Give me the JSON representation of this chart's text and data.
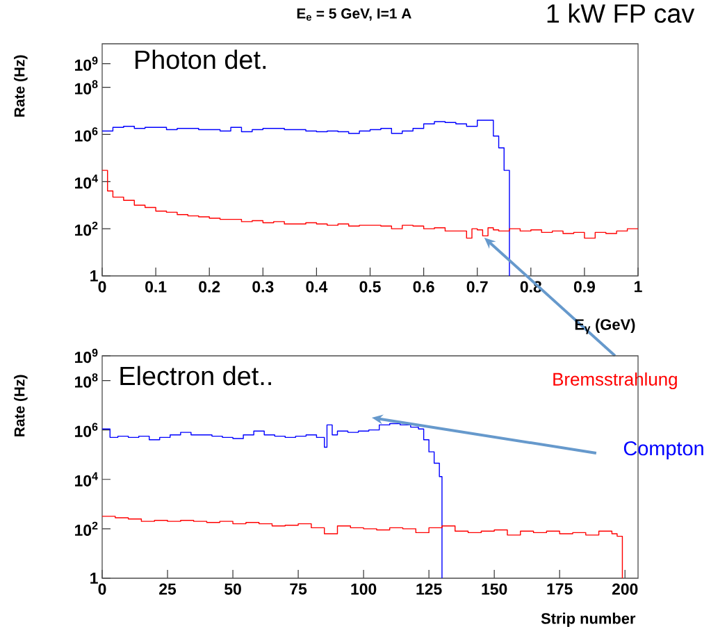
{
  "chart_data": [
    {
      "type": "step",
      "title": "**E$_{e}$ = 5 GeV, I=1 A**",
      "xlabel": "**E$_{γ}$ (GeV)**",
      "ylabel": "**Rate (Hz)**",
      "log": "y",
      "xlim": [
        0,
        1
      ],
      "ylim": [
        1,
        7000000000
      ],
      "xticks": [
        0,
        0.1,
        0.2,
        0.3,
        0.4,
        0.5,
        0.6,
        0.7,
        0.8,
        0.9,
        1
      ],
      "yticks": [
        1,
        {
          "value": 100,
          "label": "10$^{2}$"
        },
        {
          "value": 10000,
          "label": "10$^{4}$"
        },
        {
          "value": 1000000,
          "label": "10$^{6}$"
        },
        {
          "value": 100000000,
          "label": "10$^{8}$"
        },
        {
          "value": 1000000000,
          "label": "10$^{9}$"
        }
      ],
      "annotations": [
        "Photon det.",
        "1 kW FP cav"
      ],
      "series": [
        {
          "color": "#0000ff",
          "x": [
            0,
            0.02,
            0.04,
            0.06,
            0.08,
            0.1,
            0.12,
            0.14,
            0.16,
            0.18,
            0.2,
            0.22,
            0.24,
            0.26,
            0.28,
            0.3,
            0.32,
            0.34,
            0.36,
            0.38,
            0.4,
            0.42,
            0.44,
            0.46,
            0.48,
            0.5,
            0.52,
            0.54,
            0.56,
            0.58,
            0.6,
            0.62,
            0.64,
            0.66,
            0.68,
            0.7,
            0.73,
            0.74,
            0.75,
            0.76
          ],
          "values": [
            1400000,
            2000000,
            2200000,
            1800000,
            2000000,
            2000000,
            1600000,
            1800000,
            1800000,
            1600000,
            1600000,
            1400000,
            2000000,
            1300000,
            1600000,
            1800000,
            1800000,
            1600000,
            1600000,
            1400000,
            1300000,
            1400000,
            1300000,
            1100000,
            1400000,
            1600000,
            1800000,
            1100000,
            1400000,
            1800000,
            2800000,
            3500000,
            3200000,
            2800000,
            2200000,
            4000000,
            850000,
            270000,
            30000,
            1
          ]
        },
        {
          "name": "Bremsstrahlung",
          "color": "#ff0000",
          "x": [
            0,
            0.01,
            0.02,
            0.04,
            0.06,
            0.08,
            0.1,
            0.12,
            0.14,
            0.16,
            0.18,
            0.2,
            0.22,
            0.24,
            0.26,
            0.28,
            0.3,
            0.32,
            0.34,
            0.36,
            0.38,
            0.4,
            0.42,
            0.44,
            0.46,
            0.48,
            0.5,
            0.52,
            0.54,
            0.56,
            0.58,
            0.6,
            0.62,
            0.64,
            0.66,
            0.68,
            0.69,
            0.7,
            0.71,
            0.72,
            0.73,
            0.74,
            0.76,
            0.78,
            0.8,
            0.82,
            0.84,
            0.86,
            0.88,
            0.9,
            0.92,
            0.94,
            0.96,
            0.98,
            1
          ],
          "values": [
            30000,
            4000,
            2200,
            1600,
            1000,
            800,
            560,
            500,
            400,
            350,
            320,
            280,
            250,
            250,
            200,
            220,
            180,
            200,
            160,
            160,
            180,
            160,
            140,
            160,
            130,
            140,
            140,
            130,
            100,
            140,
            130,
            100,
            110,
            80,
            80,
            40,
            100,
            90,
            50,
            110,
            90,
            80,
            100,
            80,
            90,
            70,
            80,
            63,
            70,
            40,
            70,
            63,
            80,
            100,
            100
          ]
        }
      ]
    },
    {
      "type": "step",
      "xlabel": "**Strip number**",
      "ylabel": "**Rate (Hz)**",
      "log": "y",
      "xlim": [
        0,
        205
      ],
      "ylim": [
        1,
        1000000000
      ],
      "xticks": [
        0,
        25,
        50,
        75,
        100,
        125,
        150,
        175,
        200
      ],
      "yticks": [
        1,
        {
          "value": 100,
          "label": "10$^{2}$"
        },
        {
          "value": 10000,
          "label": "10$^{4}$"
        },
        {
          "value": 1000000,
          "label": "10$^{6}$"
        },
        {
          "value": 100000000,
          "label": "10$^{8}$"
        },
        {
          "value": 1000000000,
          "label": "10$^{9}$"
        }
      ],
      "annotations": [
        "Electron det.."
      ],
      "series": [
        {
          "name": "Compton",
          "color": "#0000ff",
          "x": [
            0,
            3,
            6,
            10,
            14,
            18,
            22,
            26,
            30,
            34,
            38,
            42,
            46,
            50,
            54,
            58,
            62,
            66,
            70,
            74,
            78,
            82,
            85,
            86,
            88,
            90,
            94,
            98,
            102,
            106,
            110,
            114,
            118,
            121,
            123,
            125,
            127,
            129,
            130
          ],
          "values": [
            1100000,
            500000,
            560000,
            500000,
            560000,
            400000,
            500000,
            630000,
            800000,
            630000,
            630000,
            560000,
            500000,
            450000,
            630000,
            900000,
            630000,
            560000,
            500000,
            560000,
            630000,
            500000,
            200000,
            1600000,
            630000,
            900000,
            800000,
            900000,
            1000000,
            1600000,
            1800000,
            1600000,
            1300000,
            1100000,
            400000,
            130000,
            45000,
            13000,
            1
          ]
        },
        {
          "color": "#ff0000",
          "x": [
            0,
            5,
            10,
            15,
            20,
            25,
            30,
            35,
            40,
            45,
            50,
            55,
            60,
            65,
            70,
            75,
            80,
            85,
            90,
            95,
            100,
            105,
            110,
            115,
            120,
            125,
            130,
            135,
            140,
            145,
            150,
            155,
            160,
            165,
            170,
            175,
            180,
            185,
            190,
            195,
            197,
            199
          ],
          "values": [
            320,
            280,
            250,
            200,
            220,
            200,
            220,
            200,
            180,
            200,
            160,
            180,
            160,
            130,
            140,
            160,
            110,
            63,
            130,
            110,
            100,
            90,
            110,
            100,
            70,
            110,
            130,
            80,
            70,
            80,
            90,
            56,
            80,
            70,
            80,
            63,
            70,
            56,
            80,
            63,
            50,
            1
          ]
        }
      ]
    }
  ]
}
